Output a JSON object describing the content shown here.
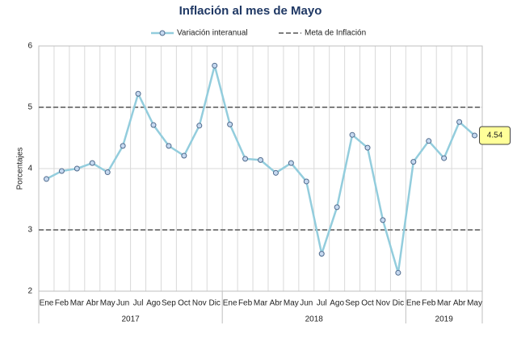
{
  "chart_data": {
    "type": "line",
    "title": "Inflación al mes de Mayo",
    "ylabel": "Porcentajes",
    "categories": [
      "Ene",
      "Feb",
      "Mar",
      "Abr",
      "May",
      "Jun",
      "Jul",
      "Ago",
      "Sep",
      "Oct",
      "Nov",
      "Dic",
      "Ene",
      "Feb",
      "Mar",
      "Abr",
      "May",
      "Jun",
      "Jul",
      "Ago",
      "Sep",
      "Oct",
      "Nov",
      "Dic",
      "Ene",
      "Feb",
      "Mar",
      "Abr",
      "May"
    ],
    "category_groups": [
      {
        "label": "2017",
        "size": 12
      },
      {
        "label": "2018",
        "size": 12
      },
      {
        "label": "2019",
        "size": 5
      }
    ],
    "series": [
      {
        "name": "Variación interanual",
        "color": "#93cddd",
        "values": [
          3.83,
          3.96,
          4.0,
          4.09,
          3.94,
          4.37,
          5.22,
          4.71,
          4.37,
          4.21,
          4.7,
          5.68,
          4.72,
          4.16,
          4.14,
          3.93,
          4.09,
          3.79,
          2.61,
          3.37,
          4.55,
          4.34,
          3.16,
          2.3,
          4.11,
          4.45,
          4.17,
          4.76,
          4.54
        ],
        "value_labels": [
          null,
          null,
          null,
          null,
          null,
          null,
          null,
          null,
          null,
          null,
          null,
          null,
          null,
          null,
          null,
          null,
          null,
          null,
          null,
          null,
          null,
          null,
          null,
          null,
          null,
          null,
          null,
          null,
          "4.54"
        ]
      }
    ],
    "target": {
      "name": "Meta de Inflación",
      "color": "#7f7f7f",
      "values": [
        3,
        5
      ]
    },
    "ylim": [
      2,
      6
    ],
    "yticks": [
      2,
      3,
      4,
      5,
      6
    ],
    "grid": true
  }
}
